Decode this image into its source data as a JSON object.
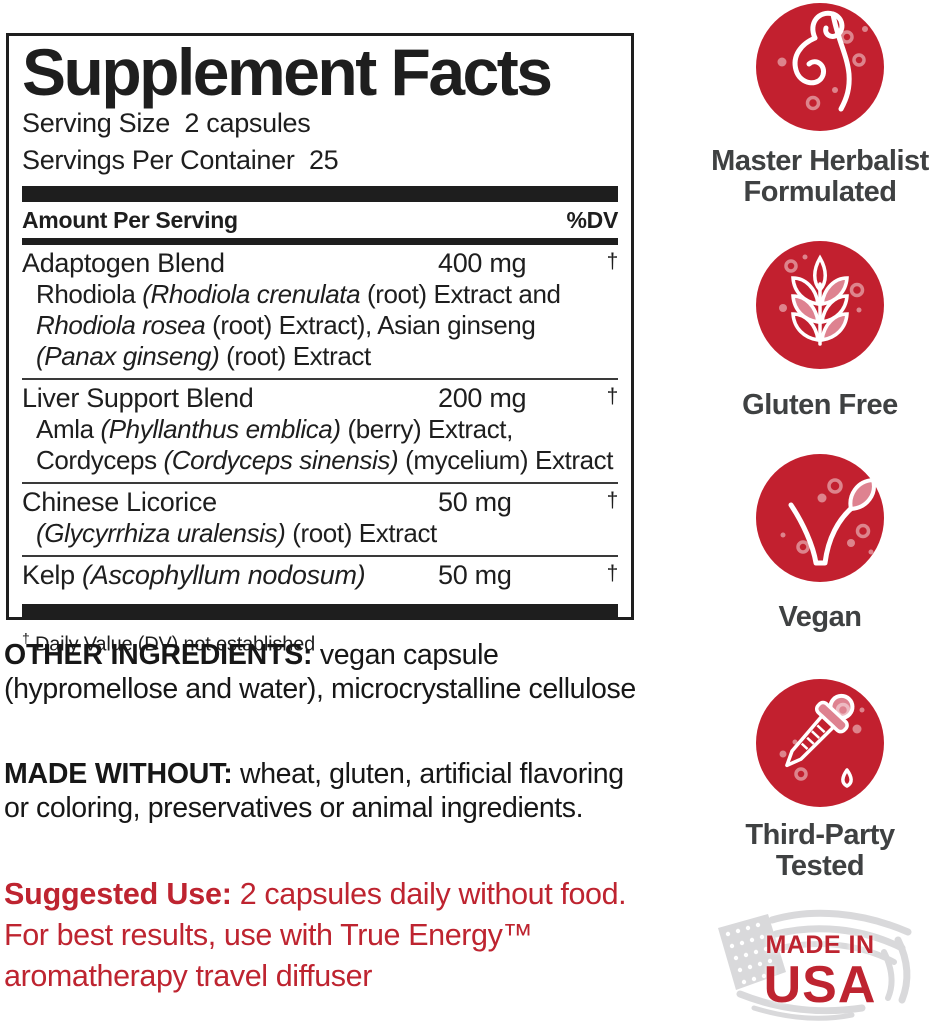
{
  "colors": {
    "badge_red": "#C2202F",
    "badge_pink": "#DE8290",
    "panel_black": "#1E1E1E",
    "label_gray": "#3F4142",
    "red_text": "#BE2430",
    "flag_gray": "#D9D9DB"
  },
  "panel": {
    "title": "Supplement Facts",
    "serving_size": "Serving Size  2 capsules",
    "servings_per_container": "Servings Per Container  25",
    "header": {
      "amount": "Amount Per Serving",
      "dv": "%DV"
    },
    "rows": [
      {
        "name": [
          {
            "t": "Adaptogen Blend",
            "i": false
          }
        ],
        "amount": "400 mg",
        "dv": "†",
        "desc": [
          {
            "t": "Rhodiola ",
            "i": false
          },
          {
            "t": "(Rhodiola crenulata",
            "i": true
          },
          {
            "t": " (root) Extract and ",
            "i": false
          },
          {
            "t": "Rhodiola rosea",
            "i": true
          },
          {
            "t": " (root) Extract), Asian ginseng ",
            "i": false
          },
          {
            "t": "(Panax ginseng)",
            "i": true
          },
          {
            "t": " (root) Extract",
            "i": false
          }
        ]
      },
      {
        "name": [
          {
            "t": "Liver Support Blend",
            "i": false
          }
        ],
        "amount": "200 mg",
        "dv": "†",
        "desc": [
          {
            "t": "Amla ",
            "i": false
          },
          {
            "t": "(Phyllanthus emblica)",
            "i": true
          },
          {
            "t": " (berry) Extract, Cordyceps ",
            "i": false
          },
          {
            "t": "(Cordyceps sinensis)",
            "i": true
          },
          {
            "t": " (mycelium) Extract",
            "i": false
          }
        ]
      },
      {
        "name": [
          {
            "t": "Chinese Licorice",
            "i": false
          }
        ],
        "amount": "50 mg",
        "dv": "†",
        "desc": [
          {
            "t": "(Glycyrrhiza uralensis)",
            "i": true
          },
          {
            "t": " (root) Extract",
            "i": false
          }
        ]
      },
      {
        "name": [
          {
            "t": "Kelp ",
            "i": false
          },
          {
            "t": "(Ascophyllum nodosum)",
            "i": true
          }
        ],
        "amount": "50 mg",
        "dv": "†",
        "desc": []
      }
    ],
    "footnote_symbol": "†",
    "footnote_text": "Daily Value (DV) not established"
  },
  "paragraphs": {
    "other_ingredients": {
      "label": "OTHER INGREDIENTS:",
      "text": " vegan capsule (hypromellose and water), microcrystalline cellulose"
    },
    "made_without": {
      "label": "MADE WITHOUT:",
      "text": " wheat, gluten, artificial flavoring or coloring, preservatives or animal ingredients."
    },
    "suggested_use": {
      "label": "Suggested Use:",
      "text": " 2 capsules daily without food. For best results, use with True Energy™ aromatherapy travel diffuser"
    }
  },
  "badges": [
    {
      "icon": "herbal-swirl-icon",
      "lines": [
        "Master Herbalist",
        "Formulated"
      ]
    },
    {
      "icon": "wheat-icon",
      "lines": [
        "Gluten Free"
      ]
    },
    {
      "icon": "vegan-leaf-check-icon",
      "lines": [
        "Vegan"
      ]
    },
    {
      "icon": "dropper-icon",
      "lines": [
        "Third-Party",
        "Tested"
      ]
    }
  ],
  "made_in_usa": {
    "icon": "usa-flag-icon",
    "line1": "MADE IN",
    "line2": "USA"
  }
}
